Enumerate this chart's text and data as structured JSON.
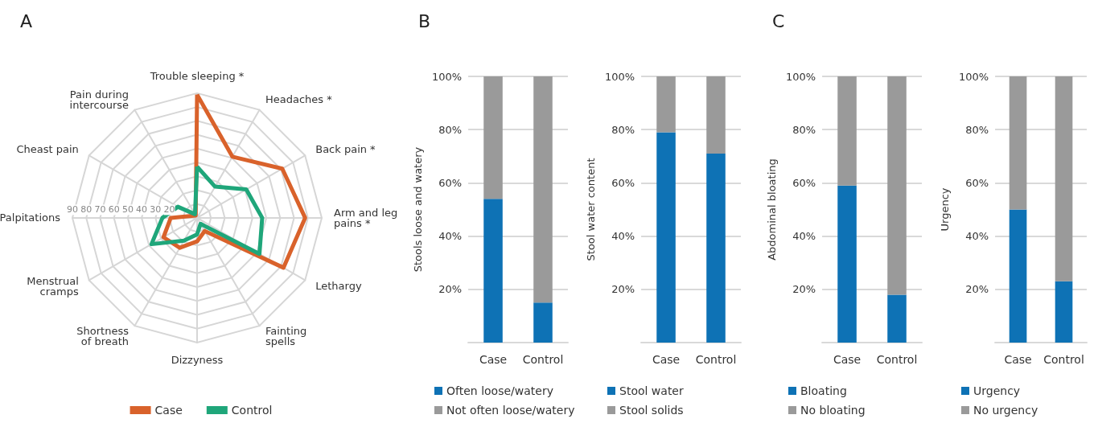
{
  "chart_data": [
    {
      "type": "radar",
      "title": "A",
      "categories": [
        "Trouble sleeping *",
        "Headaches *",
        "Back pain *",
        "Arm and leg pains *",
        "Lethargy",
        "Fainting spells",
        "Dizzyness",
        "Shortness of breath",
        "Menstrual cramps",
        "Palpitations",
        "Cheast pain",
        "Pain during intercourse"
      ],
      "series": [
        {
          "name": "Case",
          "color": "#d9622b",
          "values": [
            89,
            51,
            71,
            78,
            72,
            11,
            17,
            25,
            28,
            19,
            3,
            2
          ]
        },
        {
          "name": "Control",
          "color": "#1fa67a",
          "values": [
            37,
            26,
            41,
            47,
            52,
            5,
            12,
            19,
            38,
            25,
            16,
            3
          ]
        }
      ],
      "ylim": [
        0,
        90
      ],
      "yticks": [
        20,
        30,
        40,
        50,
        60,
        70,
        80,
        90
      ],
      "grid": true,
      "legend": "bottom"
    },
    {
      "type": "bar",
      "title": "B",
      "ylabel": "Stools loose and watery",
      "categories": [
        "Case",
        "Control"
      ],
      "stacked": true,
      "series": [
        {
          "name": "Often loose/watery",
          "color": "#0e72b5",
          "values": [
            54,
            15
          ]
        },
        {
          "name": "Not often loose/watery",
          "color": "#9a9a9a",
          "values": [
            46,
            85
          ]
        }
      ],
      "ylim": [
        0,
        100
      ],
      "yticks": [
        {
          "value": 20,
          "label": "20%"
        },
        {
          "value": 40,
          "label": "40%"
        },
        {
          "value": 60,
          "label": "60%"
        },
        {
          "value": 80,
          "label": "80%"
        },
        {
          "value": 100,
          "label": "100%"
        }
      ],
      "grid": "y",
      "legend": "bottom"
    },
    {
      "type": "bar",
      "ylabel": "Stool water content",
      "categories": [
        "Case",
        "Control"
      ],
      "stacked": true,
      "series": [
        {
          "name": "Stool water",
          "color": "#0e72b5",
          "values": [
            79,
            71
          ]
        },
        {
          "name": "Stool solids",
          "color": "#9a9a9a",
          "values": [
            21,
            29
          ]
        }
      ],
      "ylim": [
        0,
        100
      ],
      "yticks": [
        {
          "value": 20,
          "label": "20%"
        },
        {
          "value": 40,
          "label": "40%"
        },
        {
          "value": 60,
          "label": "60%"
        },
        {
          "value": 80,
          "label": "80%"
        },
        {
          "value": 100,
          "label": "100%"
        }
      ],
      "grid": "y",
      "legend": "bottom"
    },
    {
      "type": "bar",
      "title": "C",
      "ylabel": "Abdominal bloating",
      "categories": [
        "Case",
        "Control"
      ],
      "stacked": true,
      "series": [
        {
          "name": "Bloating",
          "color": "#0e72b5",
          "values": [
            59,
            18
          ]
        },
        {
          "name": "No bloating",
          "color": "#9a9a9a",
          "values": [
            41,
            82
          ]
        }
      ],
      "ylim": [
        0,
        100
      ],
      "yticks": [
        {
          "value": 20,
          "label": "20%"
        },
        {
          "value": 40,
          "label": "40%"
        },
        {
          "value": 60,
          "label": "60%"
        },
        {
          "value": 80,
          "label": "80%"
        },
        {
          "value": 100,
          "label": "100%"
        }
      ],
      "grid": "y",
      "legend": "bottom"
    },
    {
      "type": "bar",
      "ylabel": "Urgency",
      "categories": [
        "Case",
        "Control"
      ],
      "stacked": true,
      "series": [
        {
          "name": "Urgency",
          "color": "#0e72b5",
          "values": [
            50,
            23
          ]
        },
        {
          "name": "No urgency",
          "color": "#9a9a9a",
          "values": [
            50,
            77
          ]
        }
      ],
      "ylim": [
        0,
        100
      ],
      "yticks": [
        {
          "value": 20,
          "label": "20%"
        },
        {
          "value": 40,
          "label": "40%"
        },
        {
          "value": 60,
          "label": "60%"
        },
        {
          "value": 80,
          "label": "80%"
        },
        {
          "value": 100,
          "label": "100%"
        }
      ],
      "grid": "y",
      "legend": "bottom"
    }
  ]
}
